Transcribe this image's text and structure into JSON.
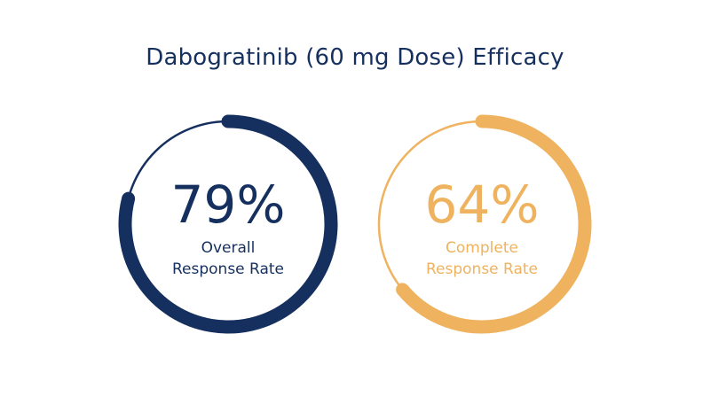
{
  "title": "Dabogratinib (60 mg Dose) Efficacy",
  "colors": {
    "navy": "#15305e",
    "gold": "#efb25f"
  },
  "chart_data": {
    "type": "donut",
    "title": "Dabogratinib (60 mg Dose) Efficacy",
    "gauges": [
      {
        "value": 79,
        "display": "79%",
        "label_lines": [
          "Overall",
          "Response Rate"
        ],
        "color": "#15305e"
      },
      {
        "value": 64,
        "display": "64%",
        "label_lines": [
          "Complete",
          "Response Rate"
        ],
        "color": "#efb25f"
      }
    ]
  }
}
